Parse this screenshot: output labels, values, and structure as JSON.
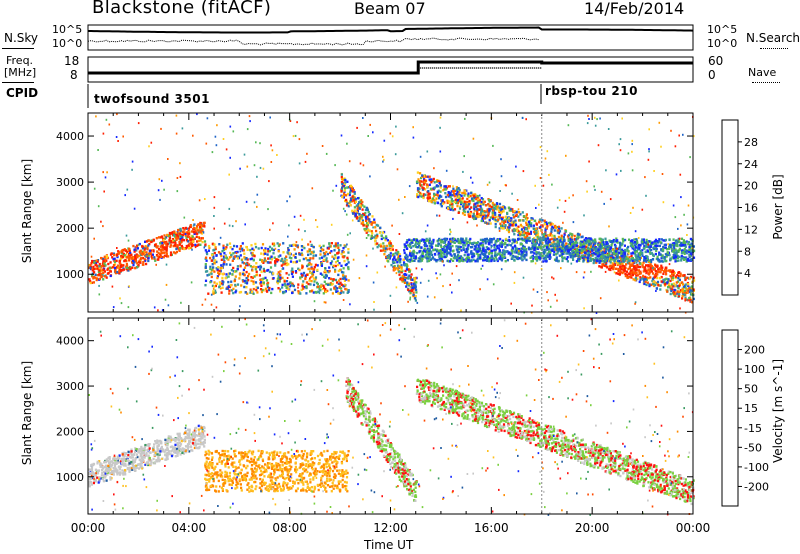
{
  "header": {
    "station": "Blackstone (fitACF)",
    "beam": "Beam 07",
    "date": "14/Feb/2014"
  },
  "noise_panel": {
    "left_label": "N.Sky",
    "left_ticks": [
      "10^5",
      "10^0"
    ],
    "right_label": "N.Search",
    "right_ticks": [
      "10^5",
      "10^0"
    ]
  },
  "freq_panel": {
    "left_label": "Freq.",
    "left_unit": "[MHz]",
    "left_ticks": [
      "18",
      "8"
    ],
    "right_label": "Nave",
    "right_ticks": [
      "60",
      "0"
    ]
  },
  "cpid_panel": {
    "label": "CPID",
    "modes": [
      {
        "name": "twofsound 3501",
        "start_hour": 0
      },
      {
        "name": "rbsp-tou 210",
        "start_hour": 18
      }
    ]
  },
  "colors": {
    "power_scale": [
      "#1428ff",
      "#1e64c8",
      "#3a9a9a",
      "#55b855",
      "#ffd020",
      "#ff9a00",
      "#ff5a00",
      "#ff1e00"
    ],
    "velocity_scale": [
      "#1428ff",
      "#1e5aa0",
      "#3a9a60",
      "#7ad040",
      "#c8c8c8",
      "#ffc020",
      "#ff8a00",
      "#ff4a00",
      "#ff1010"
    ]
  },
  "chart_data": [
    {
      "type": "heatmap",
      "title": "Power",
      "ylabel": "Slant Range [km]",
      "xlabel": "Time UT",
      "x_ticks": [
        "00:00",
        "04:00",
        "08:00",
        "12:00",
        "16:00",
        "20:00",
        "00:00"
      ],
      "xlim_hours": [
        0,
        24
      ],
      "y_ticks": [
        1000,
        2000,
        3000,
        4000
      ],
      "ylim": [
        180,
        4500
      ],
      "colorbar_label": "Power [dB]",
      "colorbar_ticks": [
        "28",
        "24",
        "20",
        "16",
        "12",
        "8",
        "4"
      ],
      "features": [
        {
          "name": "near-range band",
          "hours": [
            0,
            4.6
          ],
          "range_km": [
            900,
            2300
          ]
        },
        {
          "name": "morning patch",
          "hours": [
            4.6,
            10.3
          ],
          "range_km": [
            600,
            1700
          ]
        },
        {
          "name": "noon descending band",
          "hours": [
            10,
            13
          ],
          "range_km": [
            600,
            3200
          ]
        },
        {
          "name": "afternoon band",
          "hours": [
            13,
            24
          ],
          "range_km": [
            900,
            1300
          ]
        },
        {
          "name": "far band",
          "hours": [
            12.5,
            24
          ],
          "range_km": [
            1300,
            1800
          ]
        }
      ]
    },
    {
      "type": "heatmap",
      "title": "Velocity",
      "ylabel": "Slant Range [km]",
      "xlabel": "Time UT",
      "x_ticks": [
        "00:00",
        "04:00",
        "08:00",
        "12:00",
        "16:00",
        "20:00",
        "00:00"
      ],
      "xlim_hours": [
        0,
        24
      ],
      "y_ticks": [
        1000,
        2000,
        3000,
        4000
      ],
      "ylim": [
        180,
        4500
      ],
      "colorbar_label": "Velocity [m s^-1]",
      "colorbar_ticks": [
        "200",
        "100",
        "50",
        "15",
        "-15",
        "-50",
        "-100",
        "-200"
      ],
      "features": [
        {
          "name": "ground scatter low band",
          "hours": [
            0,
            4.6
          ],
          "range_km": [
            800,
            2200
          ]
        },
        {
          "name": "morning negative patch",
          "hours": [
            4.6,
            10.3
          ],
          "range_km": [
            700,
            1600
          ]
        },
        {
          "name": "noon descending band",
          "hours": [
            10.2,
            13
          ],
          "range_km": [
            700,
            3000
          ]
        },
        {
          "name": "afternoon ground scatter",
          "hours": [
            13,
            24
          ],
          "range_km": [
            900,
            1700
          ]
        }
      ]
    }
  ]
}
